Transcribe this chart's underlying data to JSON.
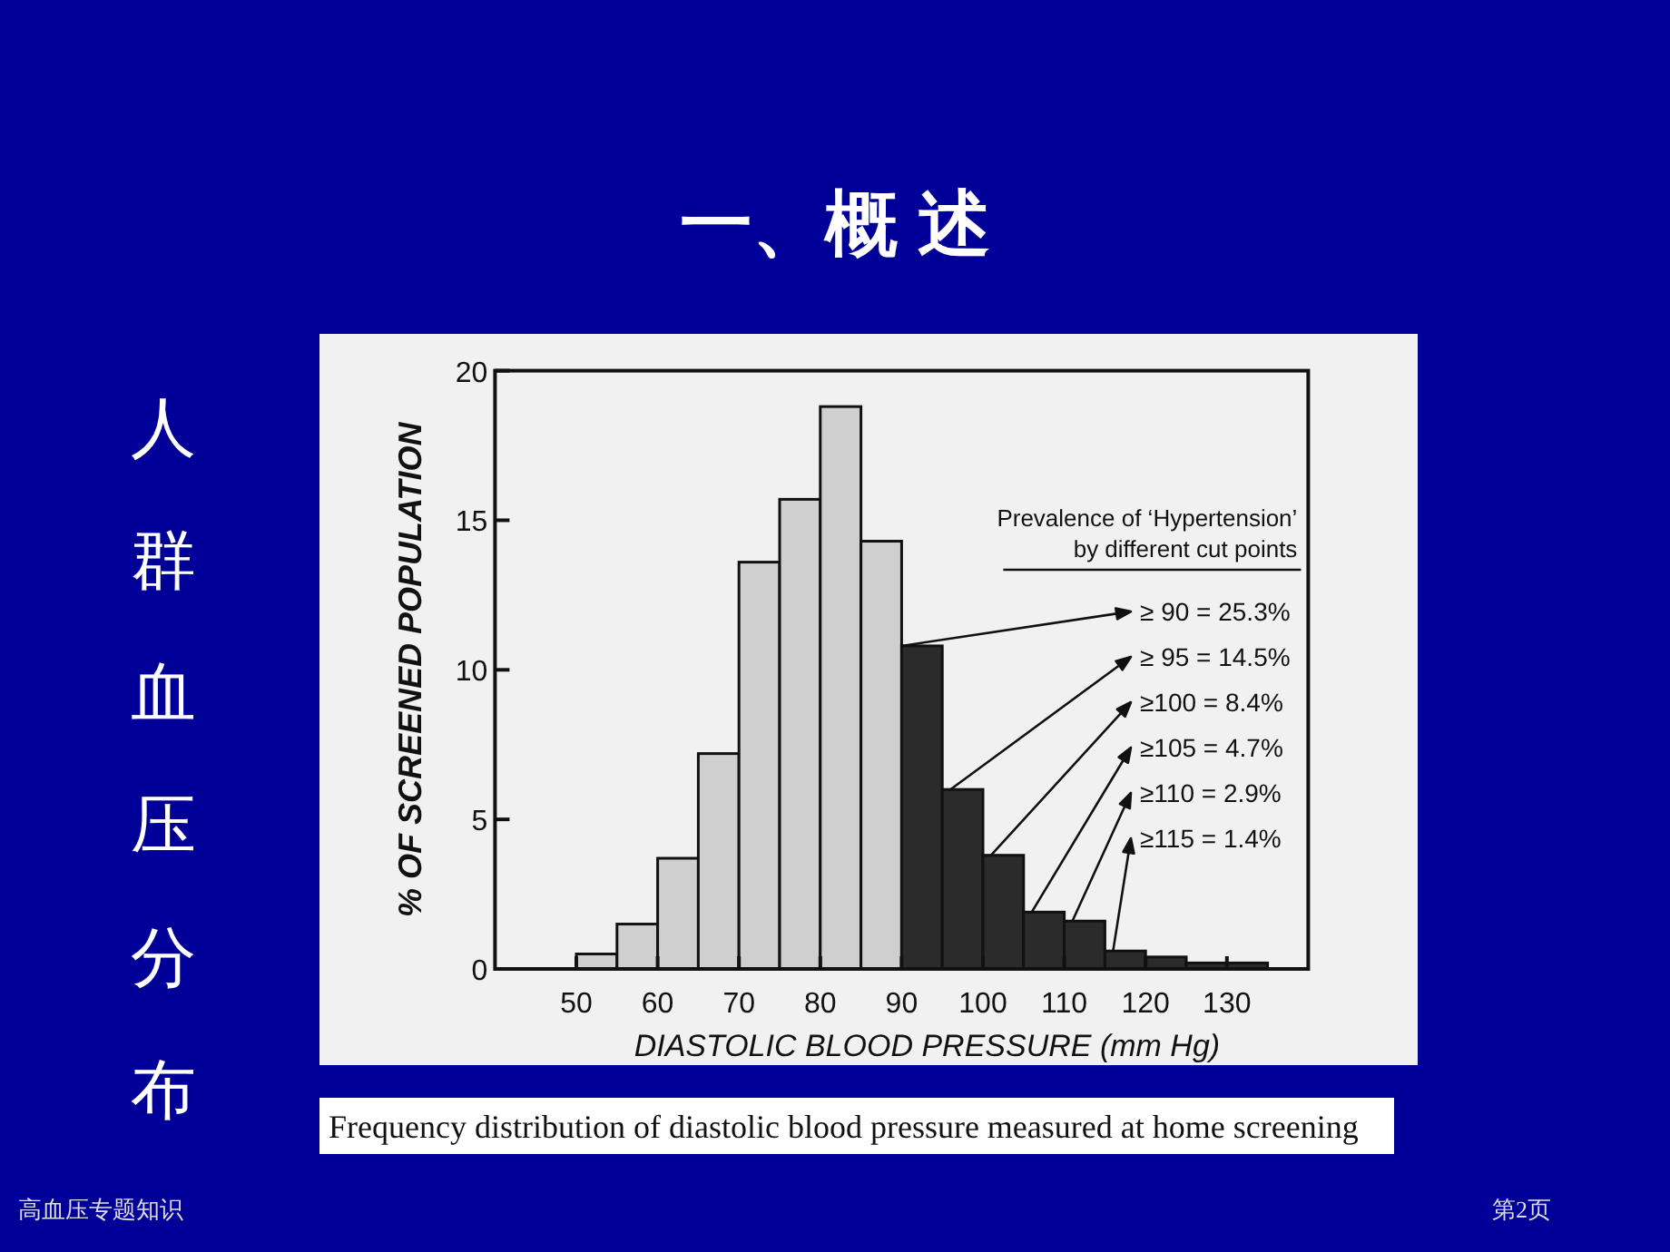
{
  "chart_data": {
    "type": "histogram",
    "title": "一、概 述",
    "subtitle": "人群血压分布",
    "xlabel": "DIASTOLIC BLOOD PRESSURE (mm Hg)",
    "ylabel": "% OF SCREENED POPULATION",
    "bins": [
      50,
      55,
      60,
      65,
      70,
      75,
      80,
      85,
      90,
      95,
      100,
      105,
      110,
      115,
      120,
      125,
      130,
      135
    ],
    "values": [
      0.5,
      1.5,
      3.7,
      7.2,
      13.6,
      15.7,
      18.8,
      14.3,
      10.8,
      6.0,
      3.8,
      1.9,
      1.6,
      0.6,
      0.4,
      0.2,
      0.2
    ],
    "colors": [
      "#cfcfcf",
      "#cfcfcf",
      "#cfcfcf",
      "#cfcfcf",
      "#cfcfcf",
      "#cfcfcf",
      "#cfcfcf",
      "#cfcfcf",
      "#2b2b2b",
      "#2b2b2b",
      "#2b2b2b",
      "#2b2b2b",
      "#2b2b2b",
      "#2b2b2b",
      "#2b2b2b",
      "#2b2b2b",
      "#2b2b2b"
    ],
    "xlim": [
      40,
      140
    ],
    "ylim": [
      0,
      20
    ],
    "xticks": [
      50,
      60,
      70,
      80,
      90,
      100,
      110,
      120,
      130
    ],
    "yticks": [
      0,
      5,
      10,
      15,
      20
    ],
    "annotations": [
      "Prevalence of ‘Hypertension’\nby different cut points",
      {
        "text": "≥ 90 = 25.3%",
        "x": 90,
        "y": 10.8
      },
      {
        "text": "≥ 95 = 14.5%",
        "x": 96,
        "y": 6.0
      },
      {
        "text": "≥100 = 8.4%",
        "x": 101,
        "y": 3.8
      },
      {
        "text": "≥105 = 4.7%",
        "x": 106,
        "y": 1.9
      },
      {
        "text": "≥110 = 2.9%",
        "x": 111,
        "y": 1.6
      },
      {
        "text": "≥115 = 1.4%",
        "x": 116,
        "y": 0.6
      },
      "Frequency distribution of diastolic blood pressure measured at home screening",
      "高血压专题知识",
      "第2页"
    ]
  }
}
